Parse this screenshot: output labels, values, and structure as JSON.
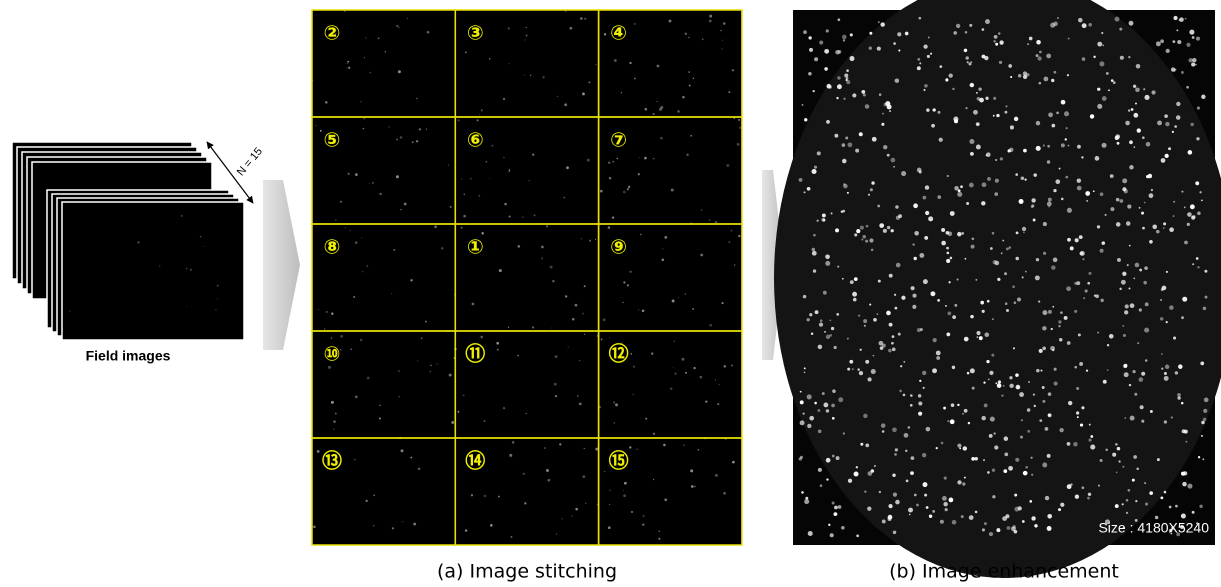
{
  "figure": {
    "field_label": "Field images",
    "n_label": "N = 15",
    "tiles": [
      "②",
      "③",
      "④",
      "⑤",
      "⑥",
      "⑦",
      "⑧",
      "①",
      "⑨",
      "⑩",
      "⑪",
      "⑫",
      "⑬",
      "⑭",
      "⑮"
    ],
    "size_label": "Size : 4180X5240",
    "caption_a": "(a) Image stitching",
    "caption_b": "(b) Image enhancement"
  }
}
